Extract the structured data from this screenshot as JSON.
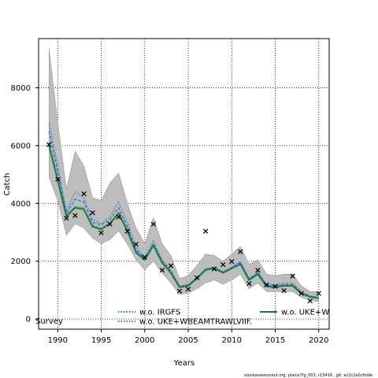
{
  "chart_data": {
    "type": "line",
    "title": "",
    "xlabel": "Years",
    "ylabel": "Catch",
    "xlim": [
      1987.8,
      2021.2
    ],
    "ylim": [
      -350,
      9700
    ],
    "xticks": [
      1990,
      1995,
      2000,
      2005,
      2010,
      2015,
      2020
    ],
    "yticks": [
      0,
      2000,
      4000,
      6000,
      8000
    ],
    "grid": true,
    "x": [
      1989,
      1990,
      1991,
      1992,
      1993,
      1994,
      1995,
      1996,
      1997,
      1998,
      1999,
      2000,
      2001,
      2002,
      2003,
      2004,
      2005,
      2006,
      2007,
      2008,
      2009,
      2010,
      2011,
      2012,
      2013,
      2014,
      2015,
      2016,
      2017,
      2018,
      2019,
      2020
    ],
    "band": {
      "upper": [
        9350,
        6800,
        4500,
        5800,
        5300,
        4200,
        4100,
        4700,
        5050,
        4000,
        3150,
        2600,
        3500,
        2600,
        2200,
        1400,
        1500,
        1850,
        2250,
        2200,
        2000,
        2250,
        2500,
        1900,
        2050,
        1550,
        1500,
        1550,
        1550,
        1150,
        950,
        950
      ],
      "lower": [
        4900,
        4100,
        2900,
        3300,
        3150,
        2800,
        2600,
        2750,
        3050,
        2600,
        2050,
        1700,
        2000,
        1600,
        1250,
        850,
        900,
        1050,
        1250,
        1350,
        1200,
        1350,
        1550,
        1050,
        1250,
        950,
        950,
        950,
        950,
        750,
        650,
        600
      ]
    },
    "series": [
      {
        "name": "w.o. IRGFS",
        "color": "#1f77d4",
        "style": "dotted",
        "values": [
          6800,
          5300,
          3750,
          4400,
          4200,
          3450,
          3300,
          3550,
          4050,
          3350,
          2500,
          2150,
          2700,
          2050,
          1700,
          1150,
          1200,
          1450,
          1750,
          1800,
          1650,
          1800,
          2000,
          1400,
          1650,
          1200,
          1200,
          1250,
          1250,
          950,
          800,
          750
        ]
      },
      {
        "name": "w.o. UKE+WBEAMTRAWLVIIF",
        "color": "#3a5fcd",
        "style": "dashed",
        "values": [
          6500,
          5100,
          3650,
          4150,
          4050,
          3350,
          3250,
          3450,
          3850,
          3200,
          2400,
          2100,
          2600,
          2000,
          1650,
          1120,
          1180,
          1420,
          1720,
          1780,
          1620,
          1780,
          1950,
          1380,
          1600,
          1180,
          1150,
          1200,
          1200,
          920,
          790,
          740
        ]
      },
      {
        "name": "w.o. UKE+WBEAMTRAWLVIIF.",
        "color": "#1f8a70",
        "style": "dotted",
        "values": [
          6100,
          4900,
          3600,
          3900,
          3850,
          3250,
          3150,
          3350,
          3700,
          3100,
          2350,
          2100,
          2550,
          1950,
          1620,
          1100,
          1150,
          1400,
          1700,
          1750,
          1600,
          1750,
          1900,
          1350,
          1580,
          1150,
          1120,
          1170,
          1170,
          900,
          780,
          730
        ]
      },
      {
        "name": "w.o. UKE+WBEAMTRAWLVIIF.",
        "color": "#1a7a3a",
        "style": "solid",
        "values": [
          6000,
          4800,
          3550,
          3850,
          3800,
          3200,
          3100,
          3300,
          3650,
          3050,
          2300,
          2050,
          2550,
          1950,
          1600,
          1100,
          1150,
          1400,
          1700,
          1750,
          1600,
          1750,
          1900,
          1350,
          1550,
          1130,
          1100,
          1150,
          1150,
          880,
          770,
          720
        ]
      }
    ],
    "observations": {
      "name": "Survey",
      "x": [
        1989,
        1990,
        1991,
        1992,
        1993,
        1994,
        1995,
        1996,
        1997,
        1998,
        1999,
        2000,
        2001,
        2002,
        2003,
        2004,
        2005,
        2006,
        2007,
        2008,
        2009,
        2010,
        2011,
        2012,
        2013,
        2014,
        2015,
        2016,
        2017,
        2018,
        2019,
        2020
      ],
      "y": [
        6050,
        4850,
        3500,
        3600,
        4350,
        3700,
        3000,
        3300,
        3550,
        3050,
        2600,
        2150,
        3300,
        1700,
        1850,
        980,
        1050,
        1450,
        3050,
        1750,
        1900,
        2000,
        2350,
        1250,
        1700,
        1200,
        1150,
        1000,
        1500,
        900,
        650,
        900
      ]
    },
    "legend": [
      {
        "label": "w.o. IRGFS",
        "color": "#1f77d4",
        "style": "dotted"
      },
      {
        "label": "w.o. UKE+WBEAMTRAWLVIIF.",
        "color": "#1f8a70",
        "style": "dotted"
      },
      {
        "label": "w.o. UKE+W",
        "color": "#1a7a3a",
        "style": "solid"
      }
    ]
  },
  "footer": "stockassessment.org, plaice7fg_001, r15416 , git: ec2c2a0c6dde"
}
